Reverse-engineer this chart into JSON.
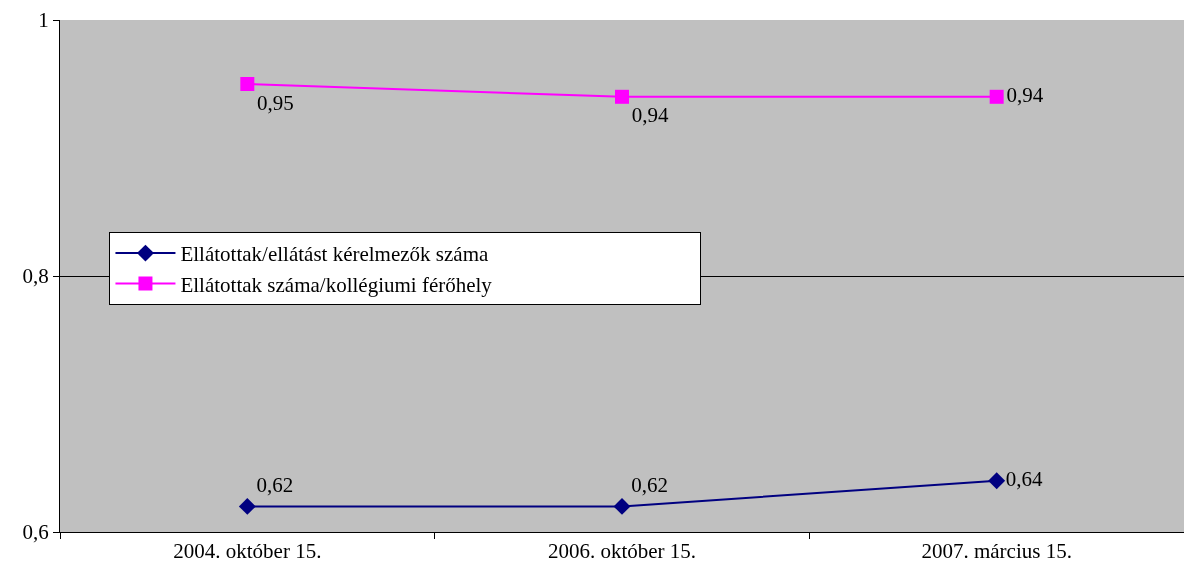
{
  "chart_data": {
    "type": "line",
    "categories": [
      "2004. október 15.",
      "2006. október 15.",
      "2007. március 15."
    ],
    "series": [
      {
        "name": "Ellátottak/ellátást kérelmezők száma",
        "color": "#000080",
        "marker": "diamond",
        "values": [
          0.62,
          0.62,
          0.64
        ],
        "value_labels": [
          "0,62",
          "0,62",
          "0,64"
        ]
      },
      {
        "name": "Ellátottak száma/kollégiumi férőhely",
        "color": "#ff00ff",
        "marker": "square",
        "values": [
          0.95,
          0.94,
          0.94
        ],
        "value_labels": [
          "0,95",
          "0,94",
          "0,94"
        ]
      }
    ],
    "ylim": [
      0.6,
      1
    ],
    "yticks": [
      {
        "value": 0.6,
        "label": "0,6"
      },
      {
        "value": 0.8,
        "label": "0,8"
      },
      1
    ],
    "grid": "y",
    "legend": "center",
    "line_style": "solid"
  }
}
